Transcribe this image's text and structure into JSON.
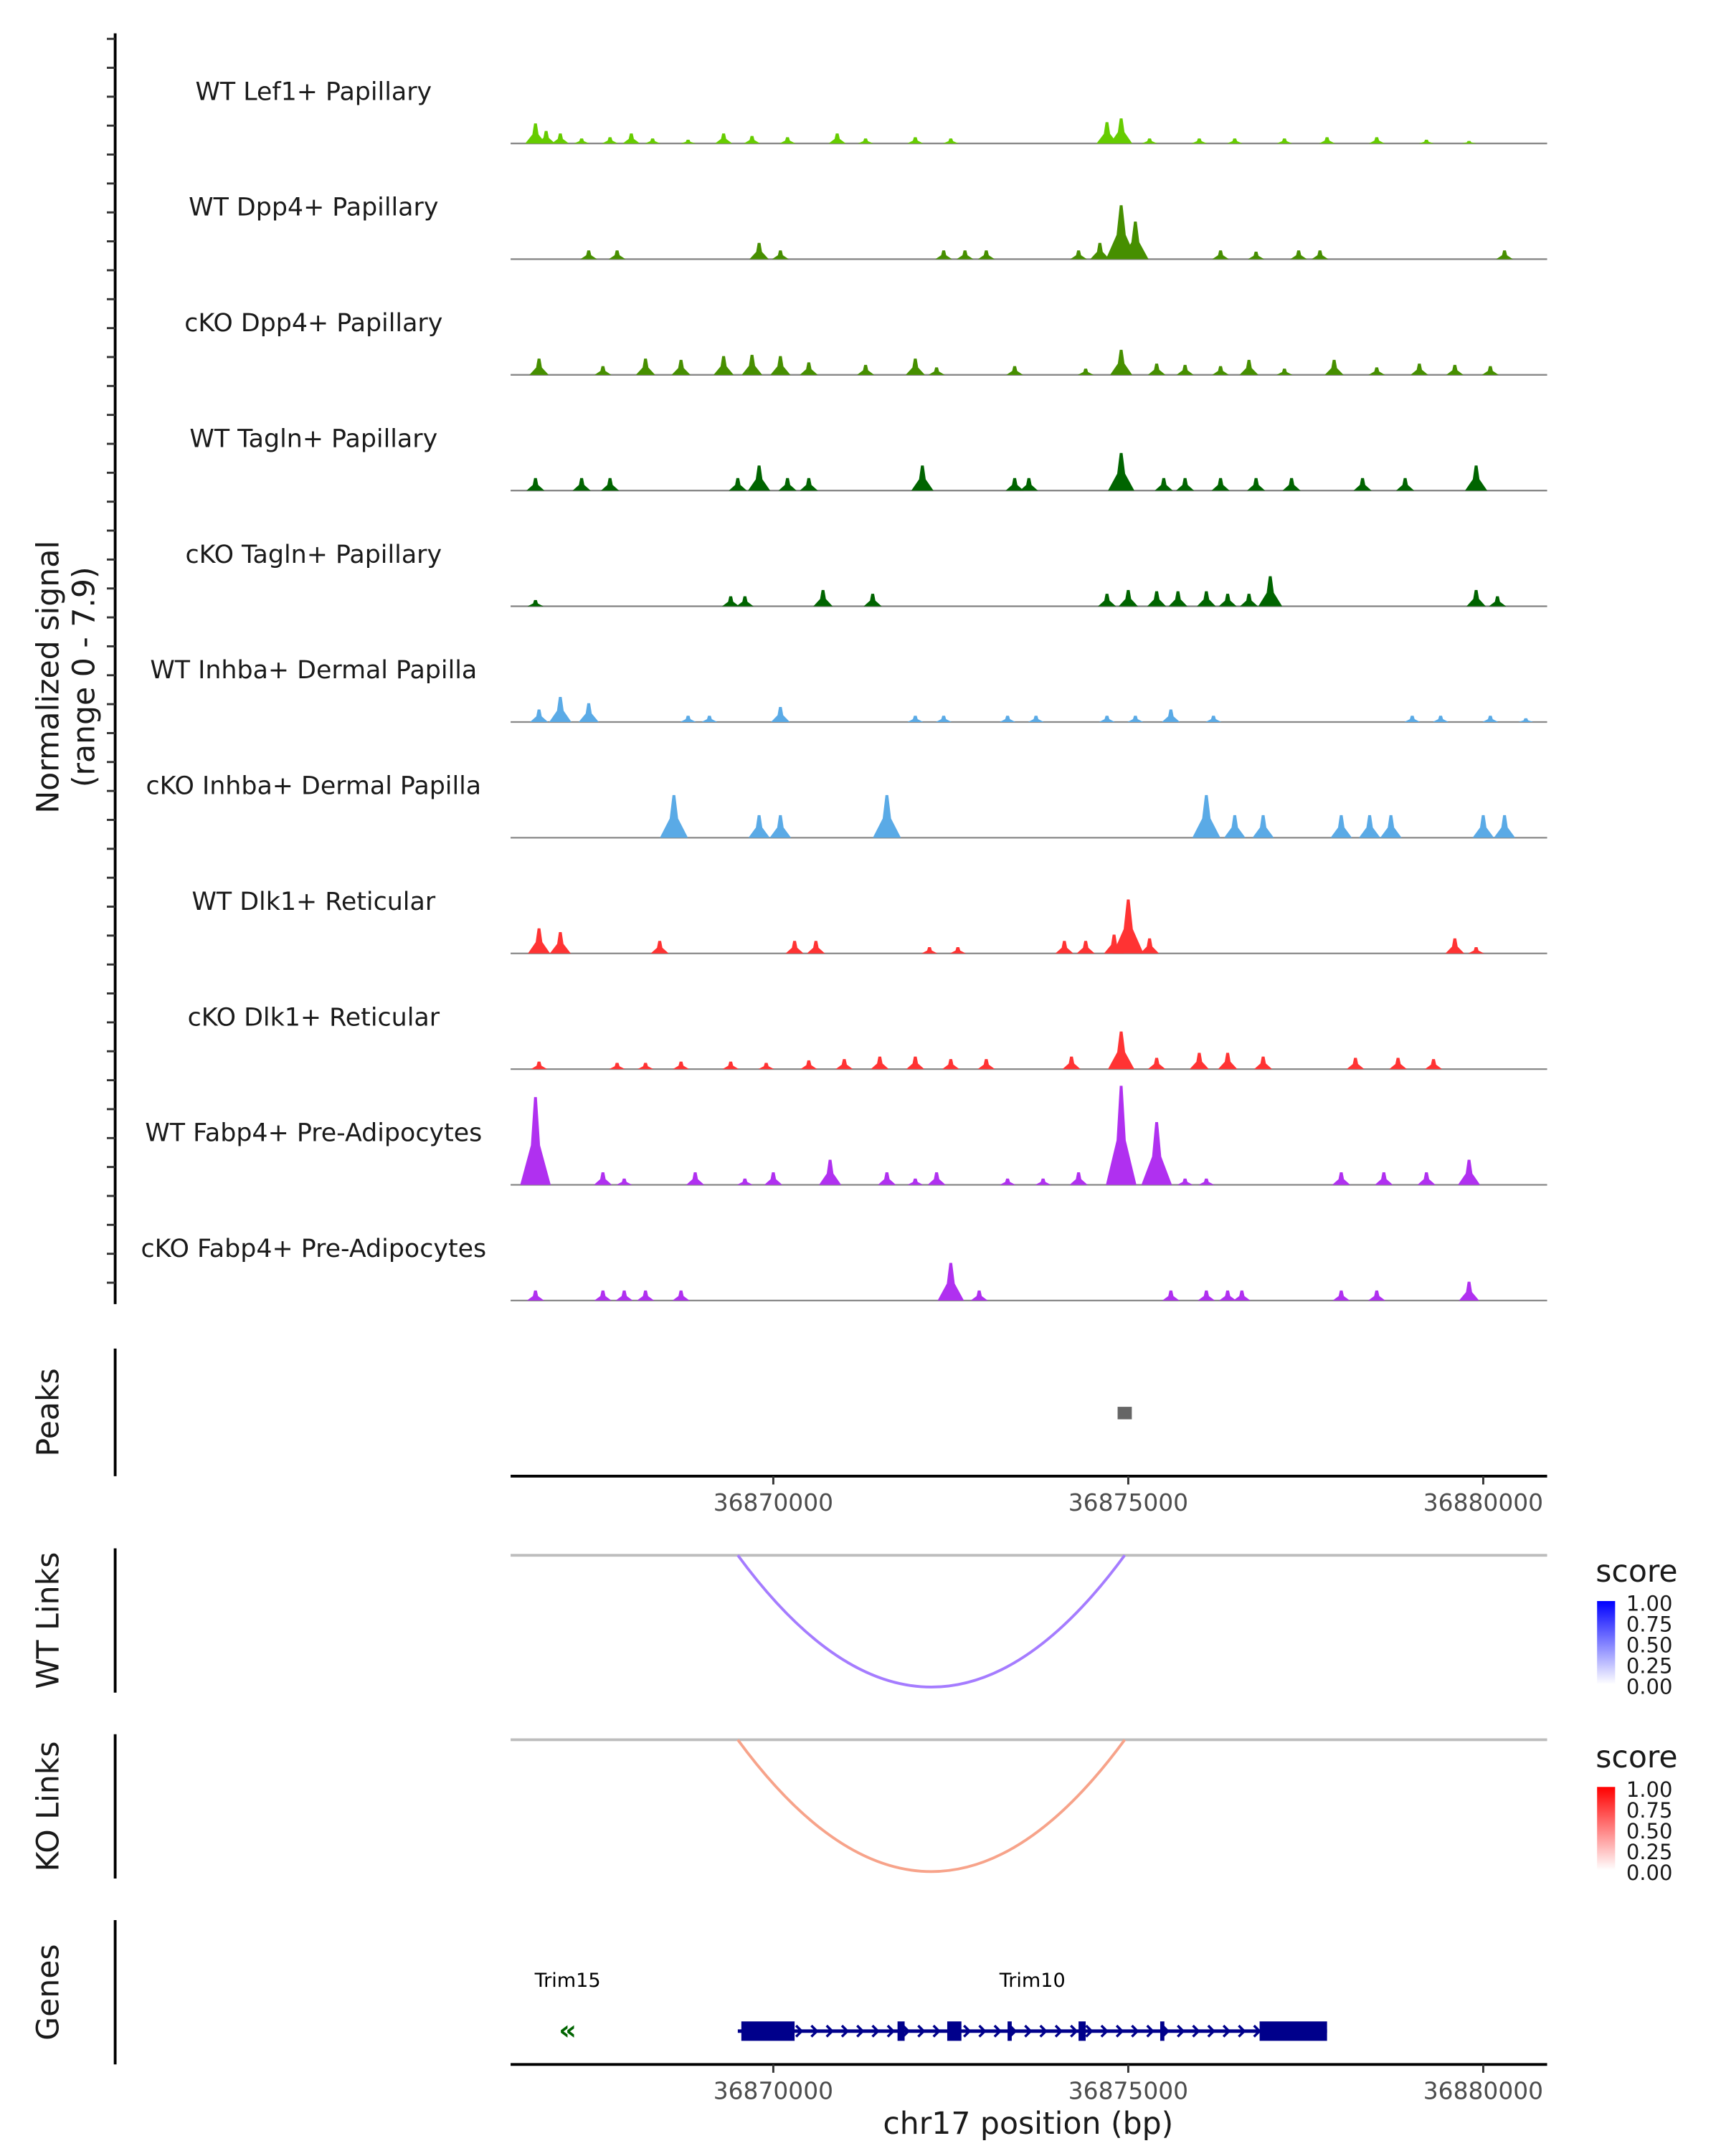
{
  "chart_data": {
    "type": "area",
    "title": "",
    "chromosome": "chr17",
    "xlabel": "chr17 position (bp)",
    "ylabel": "Normalized signal\n(range 0 - 7.9)",
    "ylabel_line1": "Normalized signal",
    "ylabel_line2": "(range 0 - 7.9)",
    "xlim": [
      36866300,
      36880900
    ],
    "ylim": [
      0,
      7.9
    ],
    "x_ticks": [
      36870000,
      36875000,
      36880000
    ],
    "x_tick_labels": [
      "36870000",
      "36875000",
      "36880000"
    ],
    "coverage_tracks": [
      {
        "name": "WT Lef1+ Papillary",
        "color": "#66cc00",
        "peaks": [
          [
            36866650,
            1.6
          ],
          [
            36866800,
            1.0
          ],
          [
            36867000,
            0.8
          ],
          [
            36867300,
            0.4
          ],
          [
            36867700,
            0.5
          ],
          [
            36868000,
            0.8
          ],
          [
            36868300,
            0.4
          ],
          [
            36868800,
            0.3
          ],
          [
            36869300,
            0.8
          ],
          [
            36869700,
            0.6
          ],
          [
            36870200,
            0.5
          ],
          [
            36870900,
            0.8
          ],
          [
            36871300,
            0.4
          ],
          [
            36872000,
            0.5
          ],
          [
            36872500,
            0.4
          ],
          [
            36874700,
            1.7
          ],
          [
            36874900,
            2.0
          ],
          [
            36875300,
            0.4
          ],
          [
            36876000,
            0.4
          ],
          [
            36876500,
            0.4
          ],
          [
            36877200,
            0.4
          ],
          [
            36877800,
            0.5
          ],
          [
            36878500,
            0.5
          ],
          [
            36879200,
            0.3
          ],
          [
            36879800,
            0.2
          ]
        ]
      },
      {
        "name": "WT Dpp4+ Papillary",
        "color": "#468f00",
        "peaks": [
          [
            36867400,
            0.7
          ],
          [
            36867800,
            0.7
          ],
          [
            36869800,
            1.3
          ],
          [
            36870100,
            0.7
          ],
          [
            36872400,
            0.7
          ],
          [
            36872700,
            0.7
          ],
          [
            36873000,
            0.7
          ],
          [
            36874300,
            0.7
          ],
          [
            36874600,
            1.3
          ],
          [
            36874900,
            4.3
          ],
          [
            36875100,
            3.0
          ],
          [
            36876300,
            0.7
          ],
          [
            36876800,
            0.6
          ],
          [
            36877400,
            0.7
          ],
          [
            36877700,
            0.7
          ],
          [
            36880300,
            0.7
          ]
        ]
      },
      {
        "name": "cKO Dpp4+ Papillary",
        "color": "#468f00",
        "peaks": [
          [
            36866700,
            1.3
          ],
          [
            36867600,
            0.7
          ],
          [
            36868200,
            1.3
          ],
          [
            36868700,
            1.2
          ],
          [
            36869300,
            1.5
          ],
          [
            36869700,
            1.6
          ],
          [
            36870100,
            1.5
          ],
          [
            36870500,
            1.0
          ],
          [
            36871300,
            0.8
          ],
          [
            36872000,
            1.3
          ],
          [
            36872300,
            0.6
          ],
          [
            36873400,
            0.7
          ],
          [
            36874400,
            0.5
          ],
          [
            36874900,
            2.0
          ],
          [
            36875400,
            0.9
          ],
          [
            36875800,
            0.8
          ],
          [
            36876300,
            0.7
          ],
          [
            36876700,
            1.2
          ],
          [
            36877200,
            0.5
          ],
          [
            36877900,
            1.2
          ],
          [
            36878500,
            0.6
          ],
          [
            36879100,
            0.9
          ],
          [
            36879600,
            0.8
          ],
          [
            36880100,
            0.7
          ]
        ]
      },
      {
        "name": "WT Tagln+ Papillary",
        "color": "#006400",
        "peaks": [
          [
            36866650,
            1.0
          ],
          [
            36867300,
            1.0
          ],
          [
            36867700,
            1.0
          ],
          [
            36869500,
            1.0
          ],
          [
            36869800,
            2.0
          ],
          [
            36870200,
            1.0
          ],
          [
            36870500,
            1.0
          ],
          [
            36872100,
            2.0
          ],
          [
            36873400,
            1.0
          ],
          [
            36873600,
            1.0
          ],
          [
            36874900,
            3.0
          ],
          [
            36875500,
            1.0
          ],
          [
            36875800,
            1.0
          ],
          [
            36876300,
            1.0
          ],
          [
            36876800,
            1.0
          ],
          [
            36877300,
            1.0
          ],
          [
            36878300,
            1.0
          ],
          [
            36878900,
            1.0
          ],
          [
            36879900,
            2.0
          ]
        ]
      },
      {
        "name": "cKO Tagln+ Papillary",
        "color": "#006400",
        "peaks": [
          [
            36866650,
            0.5
          ],
          [
            36869400,
            0.8
          ],
          [
            36869600,
            0.8
          ],
          [
            36870700,
            1.3
          ],
          [
            36871400,
            1.0
          ],
          [
            36874700,
            1.0
          ],
          [
            36875000,
            1.3
          ],
          [
            36875400,
            1.2
          ],
          [
            36875700,
            1.2
          ],
          [
            36876100,
            1.2
          ],
          [
            36876400,
            1.0
          ],
          [
            36876700,
            1.0
          ],
          [
            36877000,
            2.4
          ],
          [
            36879900,
            1.3
          ],
          [
            36880200,
            0.8
          ]
        ]
      },
      {
        "name": "WT Inhba+ Dermal Papilla",
        "color": "#5aaae6",
        "peaks": [
          [
            36866700,
            1.0
          ],
          [
            36867000,
            2.0
          ],
          [
            36867400,
            1.5
          ],
          [
            36868800,
            0.5
          ],
          [
            36869100,
            0.5
          ],
          [
            36870100,
            1.2
          ],
          [
            36872000,
            0.5
          ],
          [
            36872400,
            0.5
          ],
          [
            36873300,
            0.5
          ],
          [
            36873700,
            0.5
          ],
          [
            36874700,
            0.5
          ],
          [
            36875100,
            0.5
          ],
          [
            36875600,
            1.0
          ],
          [
            36876200,
            0.5
          ],
          [
            36879000,
            0.5
          ],
          [
            36879400,
            0.5
          ],
          [
            36880100,
            0.5
          ],
          [
            36880600,
            0.3
          ]
        ]
      },
      {
        "name": "cKO Inhba+ Dermal Papilla",
        "color": "#5aaae6",
        "peaks": [
          [
            36868600,
            3.4
          ],
          [
            36869800,
            1.8
          ],
          [
            36870100,
            1.8
          ],
          [
            36871600,
            3.4
          ],
          [
            36876100,
            3.4
          ],
          [
            36876500,
            1.8
          ],
          [
            36876900,
            1.8
          ],
          [
            36878000,
            1.8
          ],
          [
            36878400,
            1.8
          ],
          [
            36878700,
            1.8
          ],
          [
            36880000,
            1.8
          ],
          [
            36880300,
            1.8
          ]
        ]
      },
      {
        "name": "WT Dlk1+ Reticular",
        "color": "#ff3333",
        "peaks": [
          [
            36866700,
            2.0
          ],
          [
            36867000,
            1.7
          ],
          [
            36868400,
            1.0
          ],
          [
            36870300,
            1.0
          ],
          [
            36870600,
            1.0
          ],
          [
            36872200,
            0.5
          ],
          [
            36872600,
            0.5
          ],
          [
            36874100,
            1.0
          ],
          [
            36874400,
            1.0
          ],
          [
            36874800,
            1.5
          ],
          [
            36875000,
            4.3
          ],
          [
            36875300,
            1.2
          ],
          [
            36879600,
            1.2
          ],
          [
            36879900,
            0.5
          ]
        ]
      },
      {
        "name": "cKO Dlk1+ Reticular",
        "color": "#ff3333",
        "peaks": [
          [
            36866700,
            0.6
          ],
          [
            36867800,
            0.5
          ],
          [
            36868200,
            0.5
          ],
          [
            36868700,
            0.6
          ],
          [
            36869400,
            0.6
          ],
          [
            36869900,
            0.5
          ],
          [
            36870500,
            0.7
          ],
          [
            36871000,
            0.8
          ],
          [
            36871500,
            1.0
          ],
          [
            36872000,
            1.0
          ],
          [
            36872500,
            0.8
          ],
          [
            36873000,
            0.8
          ],
          [
            36874200,
            1.0
          ],
          [
            36874900,
            3.0
          ],
          [
            36875400,
            0.9
          ],
          [
            36876000,
            1.3
          ],
          [
            36876400,
            1.3
          ],
          [
            36876900,
            1.0
          ],
          [
            36878200,
            0.9
          ],
          [
            36878800,
            0.9
          ],
          [
            36879300,
            0.8
          ]
        ]
      },
      {
        "name": "WT Fabp4+ Pre-Adipocytes",
        "color": "#b030f0",
        "peaks": [
          [
            36866650,
            7.0
          ],
          [
            36867600,
            1.0
          ],
          [
            36867900,
            0.5
          ],
          [
            36868900,
            1.0
          ],
          [
            36869600,
            0.5
          ],
          [
            36870000,
            1.0
          ],
          [
            36870800,
            2.0
          ],
          [
            36871600,
            1.0
          ],
          [
            36872000,
            0.5
          ],
          [
            36872300,
            1.0
          ],
          [
            36873300,
            0.5
          ],
          [
            36873800,
            0.5
          ],
          [
            36874300,
            1.0
          ],
          [
            36874900,
            7.9
          ],
          [
            36875400,
            5.0
          ],
          [
            36875800,
            0.5
          ],
          [
            36876100,
            0.5
          ],
          [
            36878000,
            1.0
          ],
          [
            36878600,
            1.0
          ],
          [
            36879200,
            1.0
          ],
          [
            36879800,
            2.0
          ]
        ]
      },
      {
        "name": "cKO Fabp4+ Pre-Adipocytes",
        "color": "#b030f0",
        "peaks": [
          [
            36866650,
            0.8
          ],
          [
            36867600,
            0.8
          ],
          [
            36867900,
            0.8
          ],
          [
            36868200,
            0.8
          ],
          [
            36868700,
            0.8
          ],
          [
            36872500,
            3.0
          ],
          [
            36872900,
            0.8
          ],
          [
            36875600,
            0.8
          ],
          [
            36876100,
            0.8
          ],
          [
            36876400,
            0.8
          ],
          [
            36876600,
            0.8
          ],
          [
            36878000,
            0.8
          ],
          [
            36878500,
            0.8
          ],
          [
            36879800,
            1.5
          ]
        ]
      }
    ],
    "peaks_track": {
      "label": "Peaks",
      "color": "#666666",
      "regions": [
        [
          36874850,
          36875050
        ]
      ]
    },
    "link_tracks": [
      {
        "label": "WT Links",
        "links": [
          [
            36869500,
            36874950
          ]
        ],
        "scores": [
          0.5
        ],
        "low_color": "#ffffff",
        "high_color": "#0000ff",
        "arc_color": "#a57cff"
      },
      {
        "label": "KO Links",
        "links": [
          [
            36869500,
            36874950
          ]
        ],
        "scores": [
          0.4
        ],
        "low_color": "#ffffff",
        "high_color": "#ff0000",
        "arc_color": "#f7a38a"
      }
    ],
    "legends": [
      {
        "title": "score",
        "ticks": [
          "1.00",
          "0.75",
          "0.50",
          "0.25",
          "0.00"
        ],
        "low_color": "#ffffff",
        "high_color": "#0000ff"
      },
      {
        "title": "score",
        "ticks": [
          "1.00",
          "0.75",
          "0.50",
          "0.25",
          "0.00"
        ],
        "low_color": "#ffffff",
        "high_color": "#ff0000"
      }
    ],
    "genes_track": {
      "label": "Genes",
      "genes": [
        {
          "name": "Trim15",
          "strand": "-",
          "color": "#006400",
          "start": 36866400,
          "end": 36866800,
          "exons": []
        },
        {
          "name": "Trim10",
          "strand": "+",
          "color": "#00008b",
          "start": 36869500,
          "end": 36877800,
          "exons": [
            [
              36869550,
              36870300
            ],
            [
              36871750,
              36871850
            ],
            [
              36872450,
              36872650
            ],
            [
              36873300,
              36873320
            ],
            [
              36874300,
              36874400
            ],
            [
              36875450,
              36875470
            ],
            [
              36876850,
              36877800
            ]
          ]
        }
      ]
    }
  }
}
